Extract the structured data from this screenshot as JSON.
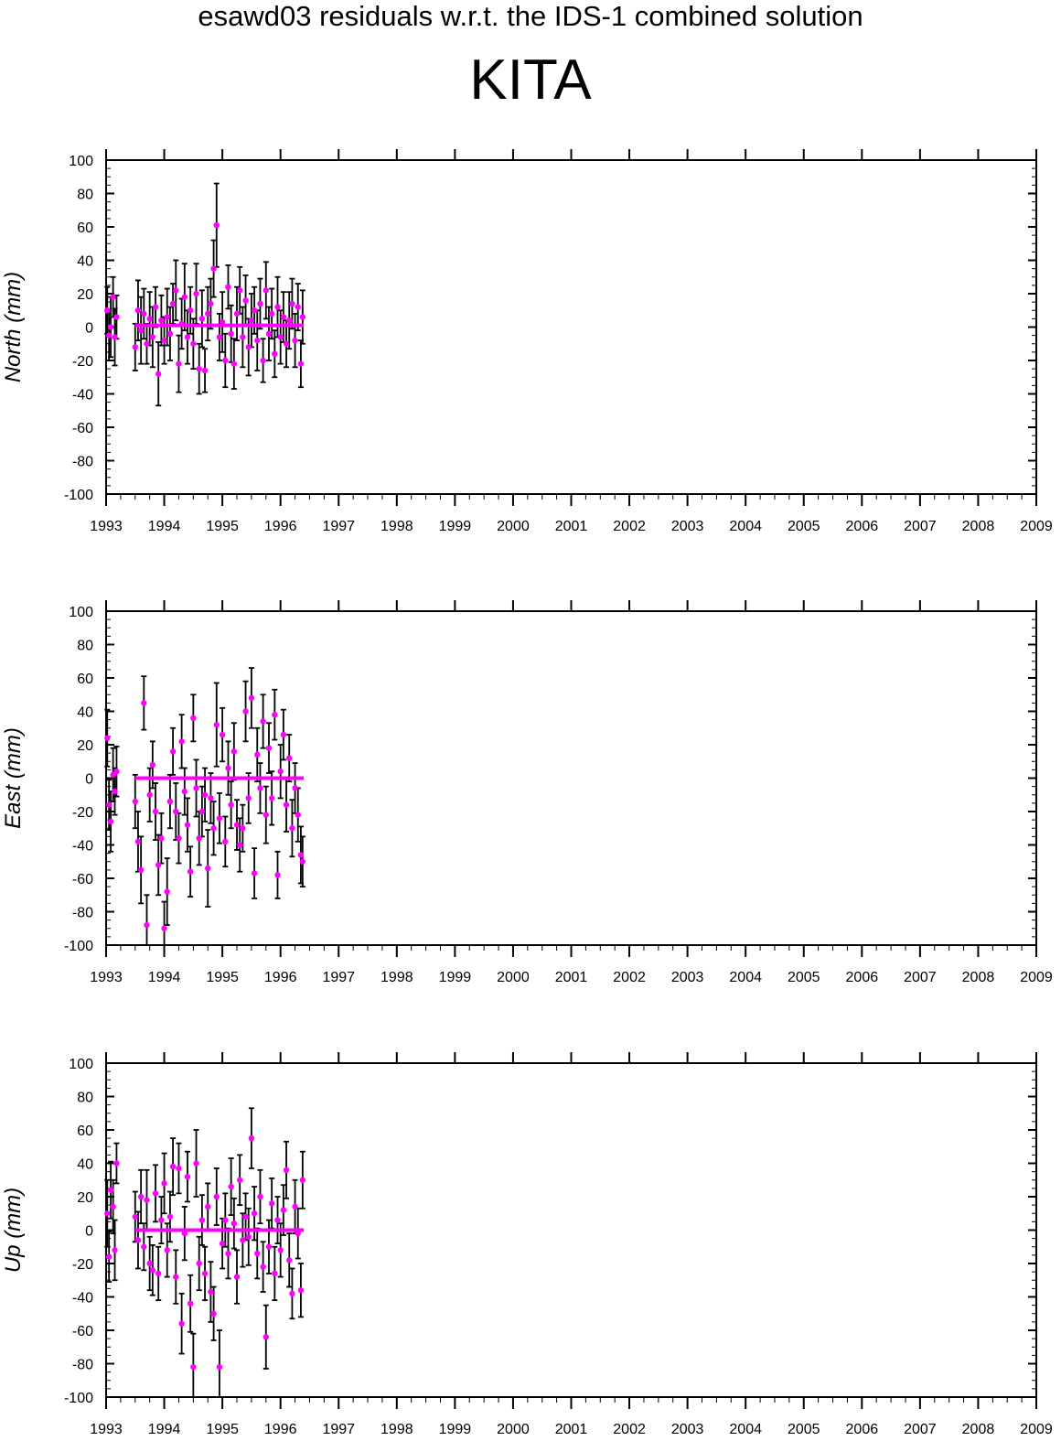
{
  "header": {
    "title": "esawd03 residuals w.r.t. the IDS-1 combined solution",
    "station": "KITA"
  },
  "colors": {
    "points": "#ff00ff",
    "error_bars": "#000000",
    "frame": "#000000"
  },
  "chart_data": [
    {
      "type": "scatter",
      "ylabel": "North (mm)",
      "xlim": [
        1993,
        2009
      ],
      "ylim": [
        -100,
        100
      ],
      "xticks": [
        "1993",
        "1994",
        "1995",
        "1996",
        "1997",
        "1998",
        "1999",
        "2000",
        "2001",
        "2002",
        "2003",
        "2004",
        "2005",
        "2006",
        "2007",
        "2008",
        "2009"
      ],
      "yticks": [
        "100",
        "80",
        "60",
        "40",
        "20",
        "0",
        "-20",
        "-40",
        "-60",
        "-80",
        "-100"
      ],
      "reference_line": {
        "x": [
          1993.5,
          1996.4
        ],
        "y": 1
      },
      "points": [
        {
          "x": 1993.02,
          "y": 10,
          "err": 14
        },
        {
          "x": 1993.05,
          "y": -5,
          "err": 15
        },
        {
          "x": 1993.08,
          "y": 0,
          "err": 18
        },
        {
          "x": 1993.12,
          "y": 18,
          "err": 12
        },
        {
          "x": 1993.15,
          "y": -6,
          "err": 17
        },
        {
          "x": 1993.18,
          "y": 6,
          "err": 13
        },
        {
          "x": 1993.5,
          "y": -12,
          "err": 14
        },
        {
          "x": 1993.55,
          "y": 10,
          "err": 18
        },
        {
          "x": 1993.6,
          "y": -2,
          "err": 20
        },
        {
          "x": 1993.65,
          "y": 8,
          "err": 15
        },
        {
          "x": 1993.7,
          "y": -10,
          "err": 12
        },
        {
          "x": 1993.75,
          "y": 5,
          "err": 16
        },
        {
          "x": 1993.8,
          "y": -6,
          "err": 18
        },
        {
          "x": 1993.85,
          "y": 12,
          "err": 12
        },
        {
          "x": 1993.9,
          "y": -28,
          "err": 19
        },
        {
          "x": 1993.95,
          "y": 4,
          "err": 15
        },
        {
          "x": 1994.0,
          "y": -8,
          "err": 14
        },
        {
          "x": 1994.05,
          "y": 6,
          "err": 17
        },
        {
          "x": 1994.1,
          "y": -4,
          "err": 16
        },
        {
          "x": 1994.15,
          "y": 14,
          "err": 12
        },
        {
          "x": 1994.2,
          "y": 22,
          "err": 18
        },
        {
          "x": 1994.25,
          "y": -22,
          "err": 17
        },
        {
          "x": 1994.3,
          "y": 2,
          "err": 15
        },
        {
          "x": 1994.35,
          "y": 18,
          "err": 20
        },
        {
          "x": 1994.4,
          "y": -6,
          "err": 16
        },
        {
          "x": 1994.45,
          "y": 10,
          "err": 14
        },
        {
          "x": 1994.5,
          "y": -10,
          "err": 15
        },
        {
          "x": 1994.55,
          "y": 20,
          "err": 18
        },
        {
          "x": 1994.6,
          "y": -25,
          "err": 15
        },
        {
          "x": 1994.65,
          "y": 5,
          "err": 17
        },
        {
          "x": 1994.7,
          "y": -26,
          "err": 13
        },
        {
          "x": 1994.75,
          "y": 8,
          "err": 16
        },
        {
          "x": 1994.8,
          "y": 14,
          "err": 15
        },
        {
          "x": 1994.85,
          "y": 35,
          "err": 17
        },
        {
          "x": 1994.9,
          "y": 61,
          "err": 25
        },
        {
          "x": 1994.95,
          "y": -6,
          "err": 14
        },
        {
          "x": 1995.0,
          "y": 3,
          "err": 18
        },
        {
          "x": 1995.05,
          "y": -20,
          "err": 16
        },
        {
          "x": 1995.1,
          "y": 24,
          "err": 13
        },
        {
          "x": 1995.15,
          "y": -4,
          "err": 17
        },
        {
          "x": 1995.2,
          "y": -22,
          "err": 15
        },
        {
          "x": 1995.25,
          "y": 8,
          "err": 16
        },
        {
          "x": 1995.3,
          "y": 22,
          "err": 14
        },
        {
          "x": 1995.35,
          "y": -6,
          "err": 18
        },
        {
          "x": 1995.4,
          "y": 16,
          "err": 15
        },
        {
          "x": 1995.45,
          "y": -12,
          "err": 17
        },
        {
          "x": 1995.5,
          "y": 4,
          "err": 16
        },
        {
          "x": 1995.55,
          "y": 10,
          "err": 14
        },
        {
          "x": 1995.6,
          "y": -8,
          "err": 18
        },
        {
          "x": 1995.65,
          "y": 14,
          "err": 15
        },
        {
          "x": 1995.7,
          "y": -20,
          "err": 13
        },
        {
          "x": 1995.75,
          "y": 22,
          "err": 17
        },
        {
          "x": 1995.8,
          "y": -4,
          "err": 16
        },
        {
          "x": 1995.85,
          "y": 8,
          "err": 15
        },
        {
          "x": 1995.9,
          "y": -16,
          "err": 14
        },
        {
          "x": 1995.95,
          "y": 12,
          "err": 18
        },
        {
          "x": 1996.0,
          "y": -6,
          "err": 16
        },
        {
          "x": 1996.05,
          "y": 6,
          "err": 15
        },
        {
          "x": 1996.1,
          "y": -10,
          "err": 14
        },
        {
          "x": 1996.15,
          "y": 4,
          "err": 17
        },
        {
          "x": 1996.2,
          "y": 14,
          "err": 15
        },
        {
          "x": 1996.25,
          "y": -8,
          "err": 16
        },
        {
          "x": 1996.3,
          "y": 12,
          "err": 14
        },
        {
          "x": 1996.35,
          "y": -22,
          "err": 14
        },
        {
          "x": 1996.38,
          "y": 6,
          "err": 16
        }
      ]
    },
    {
      "type": "scatter",
      "ylabel": "East (mm)",
      "xlim": [
        1993,
        2009
      ],
      "ylim": [
        -100,
        100
      ],
      "xticks": [
        "1993",
        "1994",
        "1995",
        "1996",
        "1997",
        "1998",
        "1999",
        "2000",
        "2001",
        "2002",
        "2003",
        "2004",
        "2005",
        "2006",
        "2007",
        "2008",
        "2009"
      ],
      "yticks": [
        "100",
        "80",
        "60",
        "40",
        "20",
        "0",
        "-20",
        "-40",
        "-60",
        "-80",
        "-100"
      ],
      "reference_line": {
        "x": [
          1993.5,
          1996.4
        ],
        "y": 0
      },
      "points": [
        {
          "x": 1993.02,
          "y": 24,
          "err": 17
        },
        {
          "x": 1993.05,
          "y": -16,
          "err": 15
        },
        {
          "x": 1993.08,
          "y": -26,
          "err": 18
        },
        {
          "x": 1993.12,
          "y": 2,
          "err": 16
        },
        {
          "x": 1993.15,
          "y": -8,
          "err": 14
        },
        {
          "x": 1993.18,
          "y": 4,
          "err": 15
        },
        {
          "x": 1993.5,
          "y": -14,
          "err": 16
        },
        {
          "x": 1993.55,
          "y": -38,
          "err": 18
        },
        {
          "x": 1993.6,
          "y": -55,
          "err": 20
        },
        {
          "x": 1993.65,
          "y": 45,
          "err": 16
        },
        {
          "x": 1993.7,
          "y": -88,
          "err": 18
        },
        {
          "x": 1993.75,
          "y": -10,
          "err": 16
        },
        {
          "x": 1993.8,
          "y": 8,
          "err": 14
        },
        {
          "x": 1993.85,
          "y": -20,
          "err": 17
        },
        {
          "x": 1993.9,
          "y": -52,
          "err": 18
        },
        {
          "x": 1993.95,
          "y": -36,
          "err": 15
        },
        {
          "x": 1994.0,
          "y": -90,
          "err": 16
        },
        {
          "x": 1994.05,
          "y": -68,
          "err": 20
        },
        {
          "x": 1994.1,
          "y": -14,
          "err": 16
        },
        {
          "x": 1994.15,
          "y": 16,
          "err": 14
        },
        {
          "x": 1994.2,
          "y": -20,
          "err": 17
        },
        {
          "x": 1994.25,
          "y": -36,
          "err": 15
        },
        {
          "x": 1994.3,
          "y": 22,
          "err": 16
        },
        {
          "x": 1994.35,
          "y": -8,
          "err": 14
        },
        {
          "x": 1994.4,
          "y": -28,
          "err": 16
        },
        {
          "x": 1994.45,
          "y": -56,
          "err": 15
        },
        {
          "x": 1994.5,
          "y": 36,
          "err": 14
        },
        {
          "x": 1994.55,
          "y": -6,
          "err": 17
        },
        {
          "x": 1994.6,
          "y": -36,
          "err": 16
        },
        {
          "x": 1994.65,
          "y": -20,
          "err": 15
        },
        {
          "x": 1994.7,
          "y": -10,
          "err": 16
        },
        {
          "x": 1994.75,
          "y": -54,
          "err": 23
        },
        {
          "x": 1994.8,
          "y": -12,
          "err": 15
        },
        {
          "x": 1994.85,
          "y": -30,
          "err": 16
        },
        {
          "x": 1994.9,
          "y": 32,
          "err": 25
        },
        {
          "x": 1994.95,
          "y": -24,
          "err": 15
        },
        {
          "x": 1995.0,
          "y": 26,
          "err": 16
        },
        {
          "x": 1995.05,
          "y": -38,
          "err": 15
        },
        {
          "x": 1995.1,
          "y": 6,
          "err": 16
        },
        {
          "x": 1995.15,
          "y": -16,
          "err": 14
        },
        {
          "x": 1995.2,
          "y": 16,
          "err": 17
        },
        {
          "x": 1995.25,
          "y": -28,
          "err": 15
        },
        {
          "x": 1995.3,
          "y": -40,
          "err": 16
        },
        {
          "x": 1995.35,
          "y": -30,
          "err": 14
        },
        {
          "x": 1995.4,
          "y": 40,
          "err": 18
        },
        {
          "x": 1995.45,
          "y": -12,
          "err": 15
        },
        {
          "x": 1995.5,
          "y": 48,
          "err": 18
        },
        {
          "x": 1995.55,
          "y": -57,
          "err": 15
        },
        {
          "x": 1995.6,
          "y": 14,
          "err": 16
        },
        {
          "x": 1995.65,
          "y": -6,
          "err": 15
        },
        {
          "x": 1995.7,
          "y": 34,
          "err": 16
        },
        {
          "x": 1995.75,
          "y": -22,
          "err": 17
        },
        {
          "x": 1995.8,
          "y": 18,
          "err": 15
        },
        {
          "x": 1995.85,
          "y": -12,
          "err": 16
        },
        {
          "x": 1995.9,
          "y": 38,
          "err": 15
        },
        {
          "x": 1995.95,
          "y": -58,
          "err": 14
        },
        {
          "x": 1996.0,
          "y": 4,
          "err": 16
        },
        {
          "x": 1996.05,
          "y": 26,
          "err": 15
        },
        {
          "x": 1996.1,
          "y": -16,
          "err": 16
        },
        {
          "x": 1996.15,
          "y": 12,
          "err": 14
        },
        {
          "x": 1996.2,
          "y": -30,
          "err": 17
        },
        {
          "x": 1996.25,
          "y": -6,
          "err": 15
        },
        {
          "x": 1996.3,
          "y": -22,
          "err": 16
        },
        {
          "x": 1996.35,
          "y": -46,
          "err": 17
        },
        {
          "x": 1996.38,
          "y": -50,
          "err": 15
        }
      ]
    },
    {
      "type": "scatter",
      "ylabel": "Up (mm)",
      "xlim": [
        1993,
        2009
      ],
      "ylim": [
        -100,
        100
      ],
      "xticks": [
        "1993",
        "1994",
        "1995",
        "1996",
        "1997",
        "1998",
        "1999",
        "2000",
        "2001",
        "2002",
        "2003",
        "2004",
        "2005",
        "2006",
        "2007",
        "2008",
        "2009"
      ],
      "yticks": [
        "100",
        "80",
        "60",
        "40",
        "20",
        "0",
        "-20",
        "-40",
        "-60",
        "-80",
        "-100"
      ],
      "reference_line": {
        "x": [
          1993.5,
          1996.4
        ],
        "y": 0
      },
      "points": [
        {
          "x": 1993.02,
          "y": 10,
          "err": 20
        },
        {
          "x": 1993.05,
          "y": -16,
          "err": 15
        },
        {
          "x": 1993.08,
          "y": 24,
          "err": 17
        },
        {
          "x": 1993.12,
          "y": 14,
          "err": 16
        },
        {
          "x": 1993.15,
          "y": -12,
          "err": 18
        },
        {
          "x": 1993.18,
          "y": 40,
          "err": 12
        },
        {
          "x": 1993.5,
          "y": 8,
          "err": 15
        },
        {
          "x": 1993.55,
          "y": -6,
          "err": 17
        },
        {
          "x": 1993.6,
          "y": 20,
          "err": 16
        },
        {
          "x": 1993.65,
          "y": -10,
          "err": 14
        },
        {
          "x": 1993.7,
          "y": 18,
          "err": 18
        },
        {
          "x": 1993.75,
          "y": -20,
          "err": 16
        },
        {
          "x": 1993.8,
          "y": -24,
          "err": 15
        },
        {
          "x": 1993.85,
          "y": 22,
          "err": 17
        },
        {
          "x": 1993.9,
          "y": -26,
          "err": 16
        },
        {
          "x": 1993.95,
          "y": 6,
          "err": 14
        },
        {
          "x": 1994.0,
          "y": 28,
          "err": 18
        },
        {
          "x": 1994.05,
          "y": -12,
          "err": 16
        },
        {
          "x": 1994.1,
          "y": 8,
          "err": 15
        },
        {
          "x": 1994.15,
          "y": 38,
          "err": 17
        },
        {
          "x": 1994.2,
          "y": -28,
          "err": 16
        },
        {
          "x": 1994.25,
          "y": 37,
          "err": 15
        },
        {
          "x": 1994.3,
          "y": -56,
          "err": 18
        },
        {
          "x": 1994.35,
          "y": -2,
          "err": 16
        },
        {
          "x": 1994.4,
          "y": 32,
          "err": 15
        },
        {
          "x": 1994.45,
          "y": -44,
          "err": 17
        },
        {
          "x": 1994.5,
          "y": -82,
          "err": 20
        },
        {
          "x": 1994.55,
          "y": 40,
          "err": 20
        },
        {
          "x": 1994.6,
          "y": -20,
          "err": 16
        },
        {
          "x": 1994.65,
          "y": 6,
          "err": 15
        },
        {
          "x": 1994.7,
          "y": -26,
          "err": 16
        },
        {
          "x": 1994.75,
          "y": 14,
          "err": 14
        },
        {
          "x": 1994.8,
          "y": -37,
          "err": 18
        },
        {
          "x": 1994.85,
          "y": -50,
          "err": 16
        },
        {
          "x": 1994.9,
          "y": 20,
          "err": 17
        },
        {
          "x": 1994.95,
          "y": -82,
          "err": 22
        },
        {
          "x": 1995.0,
          "y": -8,
          "err": 15
        },
        {
          "x": 1995.05,
          "y": 6,
          "err": 16
        },
        {
          "x": 1995.1,
          "y": -14,
          "err": 15
        },
        {
          "x": 1995.15,
          "y": 26,
          "err": 17
        },
        {
          "x": 1995.2,
          "y": 4,
          "err": 15
        },
        {
          "x": 1995.25,
          "y": -28,
          "err": 16
        },
        {
          "x": 1995.3,
          "y": 30,
          "err": 15
        },
        {
          "x": 1995.35,
          "y": -6,
          "err": 16
        },
        {
          "x": 1995.4,
          "y": 8,
          "err": 14
        },
        {
          "x": 1995.45,
          "y": -4,
          "err": 17
        },
        {
          "x": 1995.5,
          "y": 55,
          "err": 18
        },
        {
          "x": 1995.55,
          "y": 10,
          "err": 16
        },
        {
          "x": 1995.6,
          "y": -14,
          "err": 15
        },
        {
          "x": 1995.65,
          "y": 20,
          "err": 16
        },
        {
          "x": 1995.7,
          "y": -22,
          "err": 15
        },
        {
          "x": 1995.75,
          "y": -64,
          "err": 19
        },
        {
          "x": 1995.8,
          "y": -10,
          "err": 16
        },
        {
          "x": 1995.85,
          "y": 16,
          "err": 15
        },
        {
          "x": 1995.9,
          "y": -26,
          "err": 16
        },
        {
          "x": 1995.95,
          "y": 6,
          "err": 14
        },
        {
          "x": 1996.0,
          "y": -12,
          "err": 16
        },
        {
          "x": 1996.05,
          "y": 12,
          "err": 15
        },
        {
          "x": 1996.1,
          "y": 36,
          "err": 17
        },
        {
          "x": 1996.15,
          "y": -18,
          "err": 16
        },
        {
          "x": 1996.2,
          "y": -38,
          "err": 15
        },
        {
          "x": 1996.25,
          "y": 14,
          "err": 16
        },
        {
          "x": 1996.3,
          "y": -2,
          "err": 15
        },
        {
          "x": 1996.35,
          "y": -36,
          "err": 16
        },
        {
          "x": 1996.38,
          "y": 30,
          "err": 17
        }
      ]
    }
  ]
}
